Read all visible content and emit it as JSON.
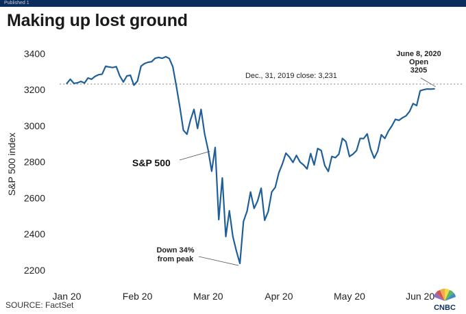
{
  "banner": {
    "label": "Published 1"
  },
  "headline": "Making up lost ground",
  "source": "SOURCE: FactSet",
  "logo": {
    "name": "CNBC",
    "text": "CNBC"
  },
  "colors": {
    "line": "#1f5f99",
    "reference": "#888888",
    "banner": "#0b2d5b"
  },
  "chart_data": {
    "type": "line",
    "title": "Making up lost ground",
    "ylabel": "S&P 500 index",
    "xlabel": "",
    "ylim": [
      2150,
      3500
    ],
    "yticks": [
      2200,
      2400,
      2600,
      2800,
      3000,
      3200,
      3400
    ],
    "xlim": [
      -3,
      112
    ],
    "xticks": [
      {
        "label": "Jan 20",
        "x": 0
      },
      {
        "label": "Feb 20",
        "x": 20
      },
      {
        "label": "Mar 20",
        "x": 40
      },
      {
        "label": "Apr 20",
        "x": 60
      },
      {
        "label": "May 20",
        "x": 80
      },
      {
        "label": "Jun 20",
        "x": 100
      }
    ],
    "series": [
      {
        "name": "S&P 500",
        "x": [
          0,
          1,
          2,
          3,
          4,
          5,
          6,
          7,
          8,
          9,
          10,
          11,
          12,
          13,
          14,
          15,
          16,
          17,
          18,
          19,
          20,
          21,
          22,
          23,
          24,
          25,
          26,
          27,
          28,
          29,
          30,
          31,
          32,
          33,
          34,
          35,
          36,
          37,
          38,
          39,
          40,
          41,
          42,
          43,
          44,
          45,
          46,
          47,
          48,
          49,
          50,
          51,
          52,
          53,
          54,
          55,
          56,
          57,
          58,
          59,
          60,
          61,
          62,
          63,
          64,
          65,
          66,
          67,
          68,
          69,
          70,
          71,
          72,
          73,
          74,
          75,
          76,
          77,
          78,
          79,
          80,
          81,
          82,
          83,
          84,
          85,
          86,
          87,
          88,
          89,
          90,
          91,
          92,
          93,
          94,
          95,
          96,
          97,
          98,
          99,
          100,
          101,
          102,
          103,
          104
        ],
        "values": [
          3235,
          3258,
          3235,
          3238,
          3246,
          3237,
          3265,
          3258,
          3274,
          3283,
          3286,
          3330,
          3326,
          3323,
          3328,
          3276,
          3243,
          3276,
          3280,
          3225,
          3248,
          3330,
          3345,
          3352,
          3355,
          3374,
          3379,
          3374,
          3383,
          3373,
          3327,
          3220,
          3103,
          2975,
          2953,
          3031,
          3091,
          2985,
          3091,
          2955,
          2866,
          2748,
          2880,
          2480,
          2711,
          2386,
          2529,
          2386,
          2305,
          2237,
          2470,
          2526,
          2633,
          2542,
          2583,
          2654,
          2476,
          2525,
          2633,
          2659,
          2740,
          2788,
          2848,
          2827,
          2797,
          2836,
          2799,
          2783,
          2761,
          2846,
          2783,
          2874,
          2863,
          2780,
          2747,
          2830,
          2823,
          2843,
          2930,
          2912,
          2830,
          2843,
          2863,
          2930,
          2929,
          2955,
          2870,
          2820,
          2860,
          2950,
          2930,
          2970,
          3000,
          3036,
          3030,
          3044,
          3055,
          3080,
          3123,
          3112,
          3194,
          3200,
          3204,
          3203,
          3205
        ],
        "color": "#1f5f99"
      }
    ],
    "reference_line": {
      "value": 3231,
      "label": "Dec., 31, 2019 close:  3,231"
    },
    "annotations": [
      {
        "text_lines": [
          "June 8, 2020",
          "Open",
          "3205"
        ],
        "x": 104,
        "value": 3205
      },
      {
        "text_lines": [
          "Down 34%",
          "from peak"
        ],
        "x": 49,
        "value": 2237
      }
    ],
    "series_label": "S&P 500"
  }
}
